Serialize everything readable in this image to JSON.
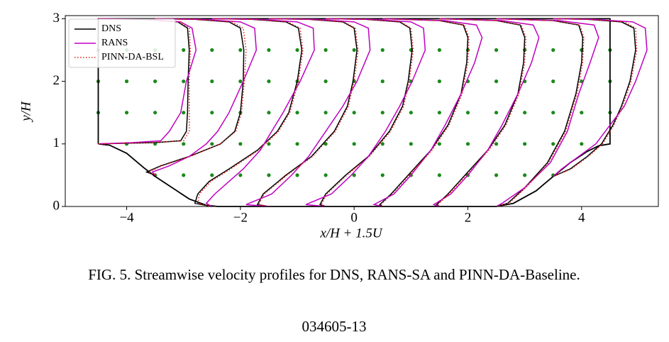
{
  "chart_data": {
    "type": "line",
    "xlabel": "x/H + 1.5U",
    "ylabel": "y/H",
    "xlim": [
      -5.08,
      5.35
    ],
    "ylim": [
      0,
      3.05
    ],
    "xticks": [
      {
        "value": -4,
        "label": "−4"
      },
      {
        "value": -2,
        "label": "−2"
      },
      0,
      2,
      4
    ],
    "yticks": [
      0,
      1,
      2,
      3
    ],
    "legend": "upper left",
    "boundary": {
      "color": "#000000",
      "x": [
        -4.5,
        -4.3,
        -4.0,
        -3.7,
        -3.5,
        -3.2,
        -2.9,
        -2.6,
        -2.4,
        2.5,
        2.8,
        3.2,
        3.5,
        3.8,
        4.1,
        4.3,
        4.5,
        4.5,
        -4.5,
        -4.5
      ],
      "y": [
        1,
        0.98,
        0.85,
        0.62,
        0.48,
        0.3,
        0.12,
        0.02,
        0,
        0,
        0.05,
        0.25,
        0.48,
        0.7,
        0.88,
        0.97,
        1,
        3,
        3,
        1
      ]
    },
    "sample_points": {
      "color": "#1a8a1a",
      "x": [
        -4.5,
        -4,
        -3.5,
        -3,
        -2.5,
        -2,
        -1.5,
        -1,
        -0.5,
        0,
        0.5,
        1,
        1.5,
        2,
        2.5,
        3,
        3.5,
        4,
        4.5,
        -4.5,
        -4,
        -3.5,
        -3,
        -2.5,
        -2,
        -1.5,
        -1,
        -0.5,
        0,
        0.5,
        1,
        1.5,
        2,
        2.5,
        3,
        3.5,
        4,
        4.5,
        -4.5,
        -4,
        -3.5,
        -3,
        -2.5,
        -2,
        -1.5,
        -1,
        -0.5,
        0,
        0.5,
        1,
        1.5,
        2,
        2.5,
        3,
        3.5,
        4,
        4.5,
        -4,
        -3.5,
        -3,
        -2.5,
        -2,
        -1.5,
        -1,
        -0.5,
        0,
        0.5,
        1,
        1.5,
        2,
        2.5,
        3,
        3.5,
        4,
        -3.5,
        -3,
        -2.5,
        -2,
        -1.5,
        -1,
        -0.5,
        0,
        0.5,
        1,
        1.5,
        2,
        2.5,
        3,
        3.5
      ],
      "y": [
        2.5,
        2.5,
        2.5,
        2.5,
        2.5,
        2.5,
        2.5,
        2.5,
        2.5,
        2.5,
        2.5,
        2.5,
        2.5,
        2.5,
        2.5,
        2.5,
        2.5,
        2.5,
        2.5,
        2,
        2,
        2,
        2,
        2,
        2,
        2,
        2,
        2,
        2,
        2,
        2,
        2,
        2,
        2,
        2,
        2,
        2,
        2,
        1.5,
        1.5,
        1.5,
        1.5,
        1.5,
        1.5,
        1.5,
        1.5,
        1.5,
        1.5,
        1.5,
        1.5,
        1.5,
        1.5,
        1.5,
        1.5,
        1.5,
        1.5,
        1.5,
        1,
        1,
        1,
        1,
        1,
        1,
        1,
        1,
        1,
        1,
        1,
        1,
        1,
        1,
        1,
        1,
        1,
        0.5,
        0.5,
        0.5,
        0.5,
        0.5,
        0.5,
        0.5,
        0.5,
        0.5,
        0.5,
        0.5,
        0.5,
        0.5,
        0.5,
        0.5
      ]
    },
    "series": [
      {
        "name": "DNS",
        "color": "#000000",
        "dash": "solid",
        "x": [
          -4.5,
          -3.5,
          -3.05,
          -2.95,
          -2.93,
          -2.92,
          -2.9,
          -2.93,
          -3.1,
          -3.7,
          -4.5,
          null,
          -3.5,
          -3.65,
          -3.4,
          -2.9,
          -2.35,
          -2.1,
          -2.0,
          -1.95,
          -1.94,
          -2.0,
          -2.2,
          -2.8,
          -3.5,
          null,
          -2.5,
          -2.8,
          -2.75,
          -2.55,
          -2.2,
          -1.7,
          -1.35,
          -1.15,
          -1.0,
          -0.92,
          -0.98,
          -1.2,
          -1.8,
          -2.5,
          null,
          -1.5,
          -1.7,
          -1.6,
          -1.2,
          -0.75,
          -0.35,
          -0.12,
          -0.02,
          0.05,
          0,
          -0.2,
          -0.8,
          -1.5,
          null,
          -0.5,
          -0.6,
          -0.5,
          -0.15,
          0.25,
          0.62,
          0.85,
          0.95,
          1.02,
          0.98,
          0.8,
          0.2,
          -0.5,
          null,
          0.5,
          0.45,
          0.65,
          0.95,
          1.35,
          1.65,
          1.88,
          1.98,
          2.0,
          1.92,
          1.5,
          0.5,
          null,
          1.5,
          1.45,
          1.65,
          1.95,
          2.35,
          2.65,
          2.88,
          2.98,
          3.0,
          2.92,
          2.5,
          1.5,
          null,
          2.5,
          2.7,
          3.0,
          3.4,
          3.7,
          3.9,
          4.0,
          4.02,
          3.95,
          3.5,
          2.5,
          null,
          3.5,
          3.8,
          4.1,
          4.35,
          4.55,
          4.7,
          4.85,
          4.95,
          4.92,
          4.7,
          4.1,
          3.5
        ],
        "values": [
          1,
          1.02,
          1.05,
          1.2,
          1.5,
          2.0,
          2.5,
          2.85,
          2.95,
          2.99,
          3,
          null,
          0.5,
          0.55,
          0.65,
          0.8,
          1.0,
          1.2,
          1.5,
          2.0,
          2.5,
          2.85,
          2.95,
          2.99,
          3,
          null,
          0,
          0.05,
          0.2,
          0.4,
          0.6,
          0.9,
          1.2,
          1.5,
          2.0,
          2.5,
          2.85,
          2.95,
          2.99,
          3,
          null,
          0,
          0.03,
          0.2,
          0.5,
          0.8,
          1.2,
          1.6,
          2.0,
          2.5,
          2.85,
          2.95,
          2.99,
          3,
          null,
          0,
          0.03,
          0.2,
          0.5,
          0.8,
          1.2,
          1.6,
          2.0,
          2.5,
          2.85,
          2.95,
          2.99,
          3,
          null,
          0,
          0.03,
          0.2,
          0.5,
          0.9,
          1.3,
          1.8,
          2.3,
          2.7,
          2.9,
          2.97,
          3,
          null,
          0,
          0.03,
          0.2,
          0.5,
          0.9,
          1.3,
          1.8,
          2.3,
          2.7,
          2.9,
          2.97,
          3,
          null,
          0,
          0.05,
          0.3,
          0.7,
          1.2,
          1.8,
          2.3,
          2.7,
          2.9,
          2.97,
          3,
          null,
          0.48,
          0.6,
          0.8,
          1.0,
          1.3,
          1.6,
          2.0,
          2.5,
          2.85,
          2.95,
          2.99,
          3
        ]
      },
      {
        "name": "RANS",
        "color": "#c000c0",
        "dash": "solid",
        "x": [
          -4.5,
          -3.9,
          -3.4,
          -3.25,
          -3.05,
          -2.95,
          -2.78,
          -2.85,
          -3.05,
          -3.7,
          -4.5,
          null,
          -3.5,
          -3.55,
          -3.25,
          -2.9,
          -2.6,
          -2.4,
          -2.2,
          -1.95,
          -1.72,
          -1.75,
          -2.0,
          -2.7,
          -3.5,
          null,
          -2.5,
          -2.6,
          -2.45,
          -2.2,
          -1.95,
          -1.65,
          -1.45,
          -1.25,
          -0.95,
          -0.7,
          -0.72,
          -1.0,
          -1.7,
          -2.5,
          null,
          -1.5,
          -1.9,
          -1.45,
          -1.1,
          -0.8,
          -0.5,
          -0.2,
          0.05,
          0.28,
          0.25,
          0,
          -0.7,
          -1.5,
          null,
          -0.5,
          -0.85,
          -0.4,
          -0.05,
          0.25,
          0.55,
          0.8,
          1.02,
          1.25,
          1.22,
          1.0,
          0.3,
          -0.5,
          null,
          0.5,
          0.35,
          0.7,
          1.0,
          1.35,
          1.6,
          1.88,
          2.12,
          2.25,
          2.15,
          1.6,
          0.5,
          null,
          1.5,
          1.4,
          1.7,
          2.0,
          2.35,
          2.6,
          2.88,
          3.12,
          3.25,
          3.15,
          2.6,
          1.5,
          null,
          2.5,
          2.6,
          3.0,
          3.45,
          3.75,
          3.95,
          4.15,
          4.3,
          4.22,
          3.6,
          2.5,
          null,
          3.5,
          3.65,
          3.95,
          4.25,
          4.5,
          4.75,
          4.95,
          5.15,
          5.12,
          4.9,
          4.2,
          3.5
        ],
        "values": [
          1,
          1.02,
          1.05,
          1.2,
          1.5,
          2.0,
          2.5,
          2.85,
          2.95,
          2.99,
          3,
          null,
          0.5,
          0.55,
          0.65,
          0.8,
          1.0,
          1.2,
          1.5,
          2.0,
          2.5,
          2.85,
          2.95,
          2.99,
          3,
          null,
          0,
          0.05,
          0.2,
          0.4,
          0.6,
          0.9,
          1.2,
          1.5,
          2.0,
          2.5,
          2.85,
          2.95,
          2.99,
          3,
          null,
          0,
          0.03,
          0.2,
          0.5,
          0.8,
          1.2,
          1.6,
          2.0,
          2.5,
          2.85,
          2.95,
          2.99,
          3,
          null,
          0,
          0.03,
          0.2,
          0.5,
          0.8,
          1.2,
          1.6,
          2.0,
          2.5,
          2.85,
          2.95,
          2.99,
          3,
          null,
          0,
          0.03,
          0.2,
          0.5,
          0.9,
          1.3,
          1.8,
          2.3,
          2.7,
          2.9,
          2.97,
          3,
          null,
          0,
          0.03,
          0.2,
          0.5,
          0.9,
          1.3,
          1.8,
          2.3,
          2.7,
          2.9,
          2.97,
          3,
          null,
          0,
          0.05,
          0.3,
          0.7,
          1.2,
          1.8,
          2.3,
          2.7,
          2.9,
          2.97,
          3,
          null,
          0.48,
          0.6,
          0.8,
          1.0,
          1.3,
          1.6,
          2.0,
          2.5,
          2.85,
          2.95,
          2.99,
          3
        ]
      },
      {
        "name": "PINN-DA-BSL",
        "color": "#e02020",
        "dash": "dotted",
        "x": [
          -4.5,
          -3.6,
          -3.0,
          -2.9,
          -2.9,
          -2.9,
          -2.88,
          -2.9,
          -3.05,
          -3.7,
          -4.5,
          null,
          -3.5,
          -3.62,
          -3.38,
          -2.88,
          -2.35,
          -2.08,
          -1.98,
          -1.93,
          -1.9,
          -1.95,
          -2.15,
          -2.8,
          -3.5,
          null,
          -2.5,
          -2.75,
          -2.72,
          -2.52,
          -2.17,
          -1.68,
          -1.33,
          -1.13,
          -0.98,
          -0.9,
          -0.95,
          -1.17,
          -1.8,
          -2.5,
          null,
          -1.5,
          -1.68,
          -1.58,
          -1.18,
          -0.73,
          -0.33,
          -0.1,
          0,
          0.07,
          0.02,
          -0.18,
          -0.8,
          -1.5,
          null,
          -0.5,
          -0.58,
          -0.48,
          -0.13,
          0.27,
          0.64,
          0.87,
          0.97,
          1.04,
          1.0,
          0.82,
          0.2,
          -0.5,
          null,
          0.5,
          0.47,
          0.67,
          0.97,
          1.37,
          1.67,
          1.9,
          2.0,
          2.02,
          1.94,
          1.5,
          0.5,
          null,
          1.5,
          1.47,
          1.67,
          1.97,
          2.37,
          2.67,
          2.9,
          3.0,
          3.02,
          2.94,
          2.5,
          1.5,
          null,
          2.5,
          2.72,
          3.02,
          3.42,
          3.72,
          3.92,
          4.02,
          4.04,
          3.97,
          3.5,
          2.5,
          null,
          3.5,
          3.82,
          4.12,
          4.37,
          4.57,
          4.72,
          4.87,
          4.97,
          4.95,
          4.75,
          4.1,
          3.5
        ],
        "values": [
          1,
          1.02,
          1.05,
          1.2,
          1.5,
          2.0,
          2.5,
          2.85,
          2.95,
          2.99,
          3,
          null,
          0.5,
          0.55,
          0.65,
          0.8,
          1.0,
          1.2,
          1.5,
          2.0,
          2.5,
          2.85,
          2.95,
          2.99,
          3,
          null,
          0,
          0.05,
          0.2,
          0.4,
          0.6,
          0.9,
          1.2,
          1.5,
          2.0,
          2.5,
          2.85,
          2.95,
          2.99,
          3,
          null,
          0,
          0.03,
          0.2,
          0.5,
          0.8,
          1.2,
          1.6,
          2.0,
          2.5,
          2.85,
          2.95,
          2.99,
          3,
          null,
          0,
          0.03,
          0.2,
          0.5,
          0.8,
          1.2,
          1.6,
          2.0,
          2.5,
          2.85,
          2.95,
          2.99,
          3,
          null,
          0,
          0.03,
          0.2,
          0.5,
          0.9,
          1.3,
          1.8,
          2.3,
          2.7,
          2.9,
          2.97,
          3,
          null,
          0,
          0.03,
          0.2,
          0.5,
          0.9,
          1.3,
          1.8,
          2.3,
          2.7,
          2.9,
          2.97,
          3,
          null,
          0,
          0.05,
          0.3,
          0.7,
          1.2,
          1.8,
          2.3,
          2.7,
          2.9,
          2.97,
          3,
          null,
          0.48,
          0.6,
          0.8,
          1.0,
          1.3,
          1.6,
          2.0,
          2.5,
          2.85,
          2.95,
          2.99,
          3
        ]
      }
    ]
  },
  "caption": "FIG. 5.  Streamwise velocity profiles for DNS, RANS-SA and PINN-DA-Baseline.",
  "page_number": "034605-13"
}
